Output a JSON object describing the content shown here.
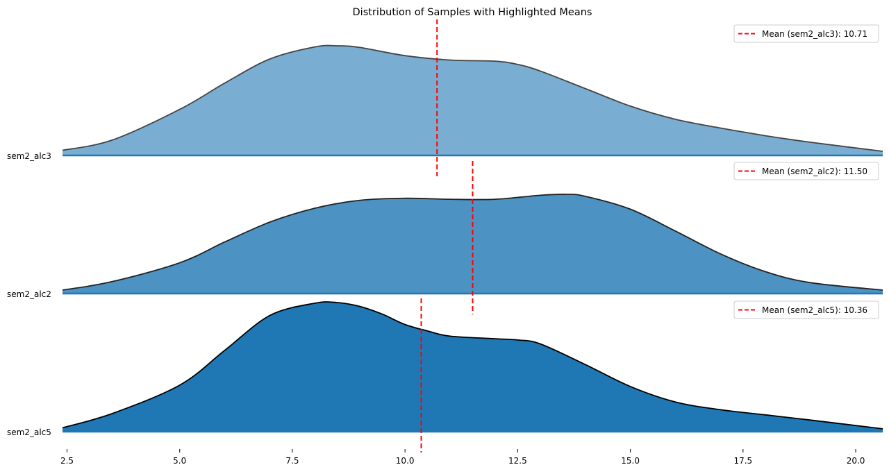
{
  "chart_data": {
    "type": "area",
    "title": "Distribution of Samples with Highlighted Means",
    "xlabel": "",
    "ylabel": "",
    "xlim": [
      2.4,
      20.6
    ],
    "x_ticks": [
      "2.5",
      "5.0",
      "7.5",
      "10.0",
      "12.5",
      "15.0",
      "17.5",
      "20.0"
    ],
    "x_tick_values": [
      2.5,
      5.0,
      7.5,
      10.0,
      12.5,
      15.0,
      17.5,
      20.0
    ],
    "grid": false,
    "mean_line_color": "#ff0000",
    "series": [
      {
        "name": "sem2_alc3",
        "color": "#1f77b4",
        "alpha": 0.6,
        "edge_color": "#444444",
        "mean": 10.71,
        "legend_label": "Mean (sem2_alc3): 10.71",
        "x": [
          2.4,
          3.5,
          5.0,
          6.0,
          7.0,
          8.0,
          8.5,
          9.0,
          10.0,
          11.0,
          12.0,
          12.5,
          13.0,
          14.0,
          15.0,
          16.0,
          17.0,
          18.0,
          19.0,
          20.6
        ],
        "density": [
          0.047,
          0.14,
          0.42,
          0.66,
          0.88,
          0.99,
          1.0,
          0.985,
          0.91,
          0.87,
          0.86,
          0.83,
          0.77,
          0.61,
          0.45,
          0.33,
          0.25,
          0.18,
          0.12,
          0.038
        ]
      },
      {
        "name": "sem2_alc2",
        "color": "#1f77b4",
        "alpha": 0.8,
        "edge_color": "#222222",
        "mean": 11.5,
        "legend_label": "Mean (sem2_alc2): 11.50",
        "x": [
          2.4,
          3.5,
          5.0,
          6.0,
          7.0,
          8.0,
          9.0,
          10.0,
          11.0,
          12.0,
          13.0,
          13.6,
          14.0,
          15.0,
          16.0,
          17.0,
          18.0,
          19.0,
          20.6
        ],
        "density": [
          0.035,
          0.12,
          0.31,
          0.52,
          0.72,
          0.86,
          0.94,
          0.96,
          0.95,
          0.95,
          0.99,
          1.0,
          0.98,
          0.85,
          0.63,
          0.4,
          0.22,
          0.11,
          0.035
        ]
      },
      {
        "name": "sem2_alc5",
        "color": "#1f77b4",
        "alpha": 1.0,
        "edge_color": "#000000",
        "mean": 10.36,
        "legend_label": "Mean (sem2_alc5): 10.36",
        "x": [
          2.4,
          3.5,
          5.0,
          6.0,
          7.0,
          8.0,
          8.5,
          9.0,
          9.5,
          10.0,
          10.5,
          11.0,
          12.0,
          12.5,
          13.0,
          14.0,
          15.0,
          16.0,
          17.0,
          18.0,
          19.0,
          20.6
        ],
        "density": [
          0.03,
          0.14,
          0.36,
          0.63,
          0.9,
          0.995,
          1.0,
          0.97,
          0.91,
          0.83,
          0.78,
          0.74,
          0.72,
          0.71,
          0.68,
          0.52,
          0.35,
          0.23,
          0.17,
          0.13,
          0.09,
          0.022
        ]
      }
    ]
  }
}
